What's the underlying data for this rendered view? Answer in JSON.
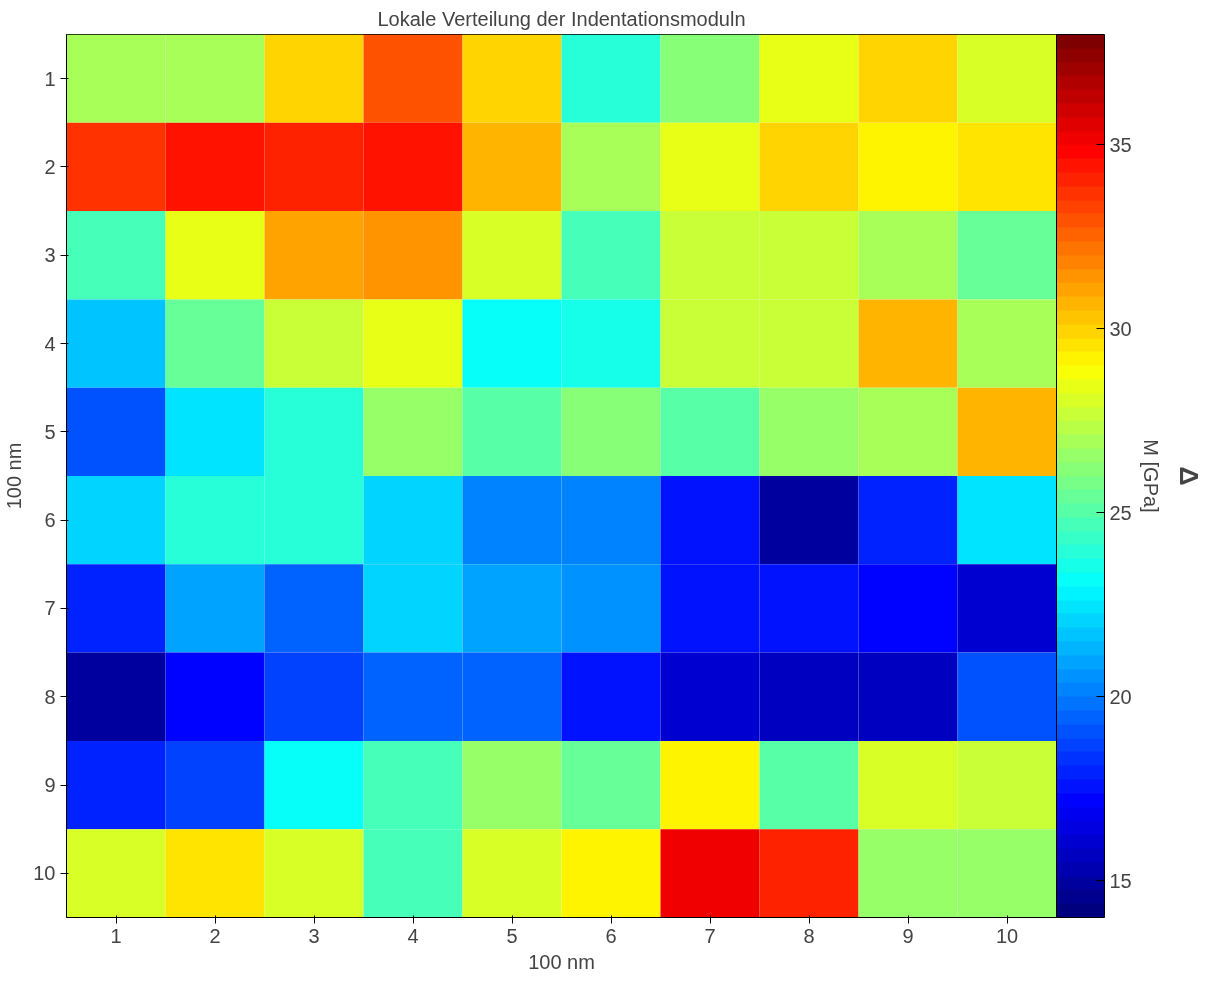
{
  "chart_data": {
    "type": "heatmap",
    "title": "Lokale Verteilung der Indentationsmoduln",
    "xlabel": "100 nm",
    "ylabel": "100 nm",
    "clabel": "M [GPa]",
    "categories": [
      "1",
      "2",
      "3",
      "4",
      "5",
      "6",
      "7",
      "8",
      "9",
      "10"
    ],
    "y_categories": [
      "1",
      "2",
      "3",
      "4",
      "5",
      "6",
      "7",
      "8",
      "9",
      "10"
    ],
    "cells": [
      [
        27,
        27,
        30,
        33,
        30,
        24,
        26,
        28.5,
        30,
        28
      ],
      [
        33.5,
        34.5,
        34,
        34.5,
        30.5,
        27,
        28.5,
        30,
        29,
        29.5
      ],
      [
        24.5,
        28.5,
        31,
        31.5,
        28,
        24.5,
        27.5,
        27.5,
        27,
        25.5
      ],
      [
        21.5,
        25.5,
        27.5,
        28.5,
        23,
        23.5,
        27.5,
        27.5,
        30.5,
        27
      ],
      [
        19,
        22.5,
        24,
        26.5,
        25,
        26,
        25,
        26.5,
        27,
        30.5
      ],
      [
        22,
        24,
        24,
        22,
        20,
        20,
        17.5,
        15,
        18,
        22.5
      ],
      [
        18,
        21,
        19.5,
        22,
        21,
        20.5,
        17.5,
        17.5,
        17,
        16
      ],
      [
        15,
        17,
        18.5,
        19.5,
        19.5,
        17.5,
        16,
        15.5,
        15.5,
        19
      ],
      [
        18,
        18.5,
        23,
        24.5,
        26.5,
        25.5,
        29,
        25,
        28,
        27.5
      ],
      [
        28,
        29.5,
        28,
        24.5,
        28,
        29,
        35,
        34,
        26.5,
        26.5
      ]
    ],
    "clim": [
      14,
      38
    ],
    "cticks": [
      15,
      20,
      25,
      30,
      35
    ],
    "annotations": [
      "Δ"
    ]
  }
}
